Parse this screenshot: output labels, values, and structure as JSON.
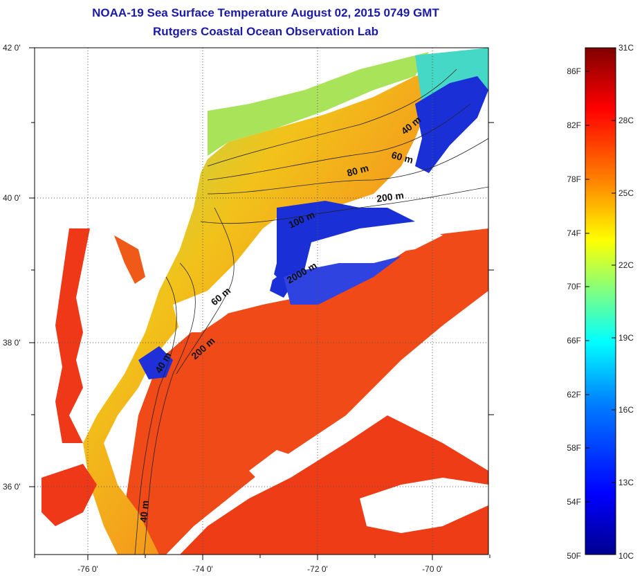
{
  "title_line1": "NOAA-19 Sea Surface Temperature August 02, 2015 0749 GMT",
  "title_line2": "Rutgers Coastal Ocean Observation Lab",
  "map": {
    "lon_ticks": [
      "-76 0'",
      "-74 0'",
      "-72 0'",
      "-70 0'"
    ],
    "lat_ticks": [
      "42 0'",
      "40 0'",
      "38 0'",
      "36 0'"
    ],
    "contour_labels": [
      "40 m",
      "60 m",
      "80 m",
      "200 m",
      "100 m",
      "2000 m",
      "60 m",
      "200 m",
      "40 m",
      "40 m"
    ]
  },
  "colorbar": {
    "fahrenheit": [
      "86F",
      "82F",
      "78F",
      "74F",
      "70F",
      "66F",
      "62F",
      "58F",
      "54F",
      "50F"
    ],
    "celsius": [
      "31C",
      "28C",
      "25C",
      "22C",
      "19C",
      "16C",
      "13C",
      "10C"
    ],
    "range_c": [
      10,
      31
    ],
    "colors": [
      "#00008f",
      "#0000ff",
      "#0080ff",
      "#00ffff",
      "#80ff80",
      "#ffff00",
      "#ff8000",
      "#ff0000",
      "#800000"
    ]
  }
}
